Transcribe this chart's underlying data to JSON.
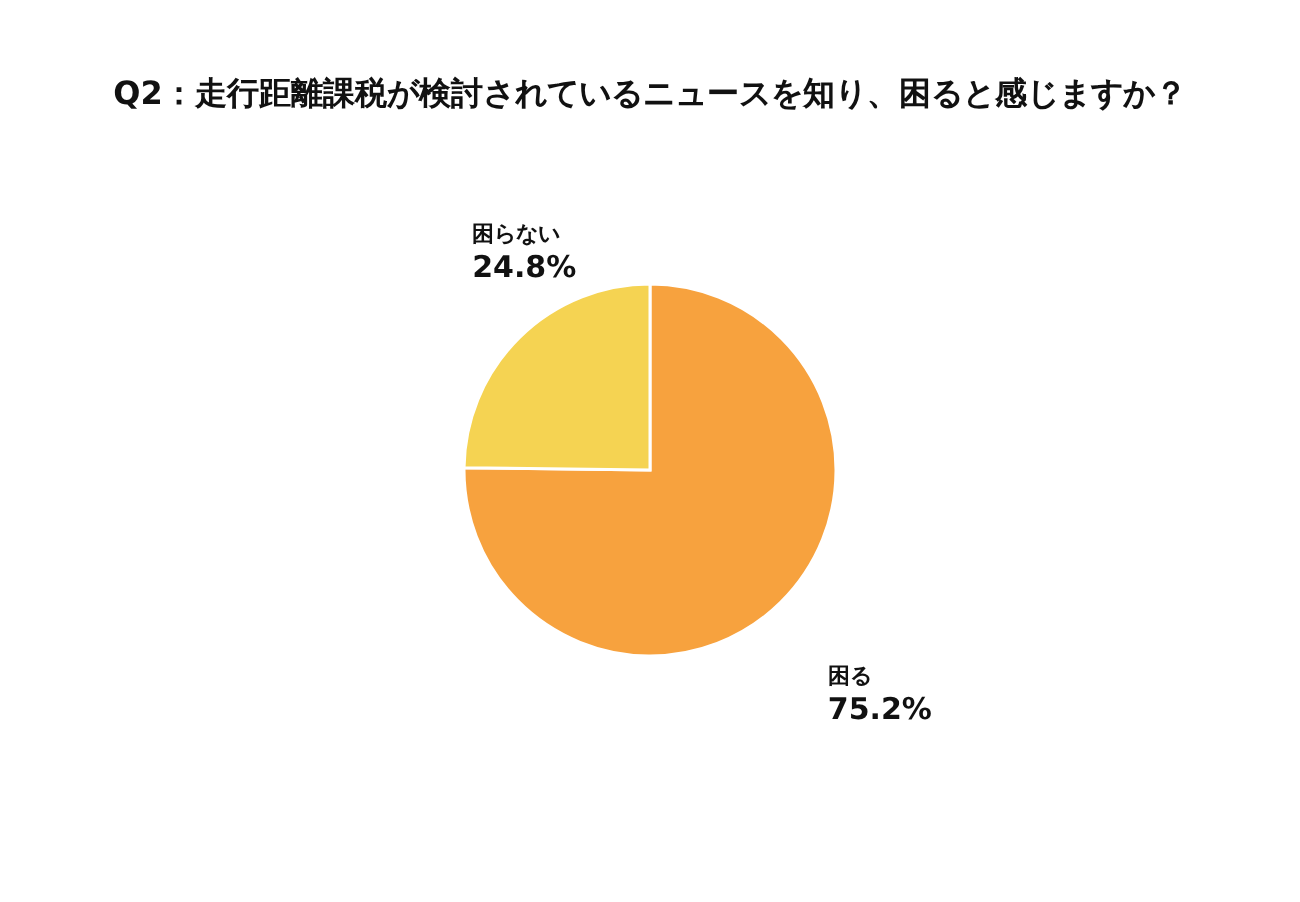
{
  "chart_data": {
    "type": "pie",
    "title": "Q2：走行距離課税が検討されているニュースを知り、困ると感じますか？",
    "categories": [
      "困る",
      "困らない"
    ],
    "values": [
      75.2,
      24.8
    ],
    "colors": [
      "#f7a23e",
      "#f5d352"
    ],
    "value_labels": [
      "75.2%",
      "24.8%"
    ]
  }
}
